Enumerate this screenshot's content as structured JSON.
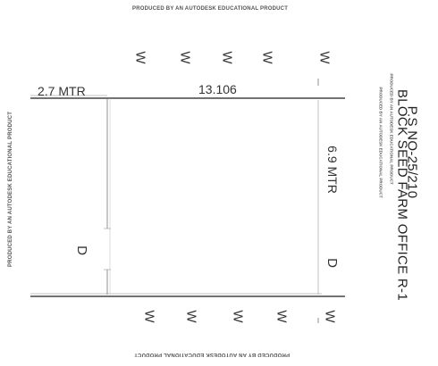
{
  "watermark": "PRODUCED BY AN AUTODESK EDUCATIONAL PRODUCT",
  "plot": {
    "plot_no": "P.S NO-25/210",
    "office_name": "BLOCK SEED FARM OFFICE R-1"
  },
  "dimensions": {
    "left_width": "2.7 MTR",
    "front_length": "13.106",
    "depth": "6.9 MTR"
  },
  "markers": {
    "window": "W",
    "door": "D"
  }
}
